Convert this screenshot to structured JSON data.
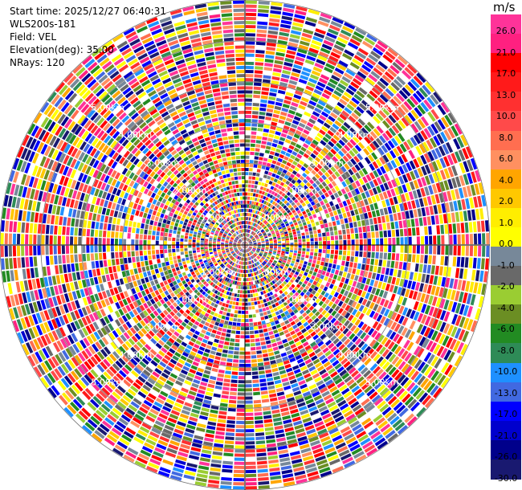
{
  "header": {
    "start_time": "Start time: 2025/12/27 06:40:31",
    "instrument": "WLS200s-181",
    "field": "Field: VEL",
    "elevation": "Elevation(deg): 35.00",
    "nrays": "NRays: 120"
  },
  "rings": {
    "labels": [
      "1.00km",
      "2.00km",
      "3.00km",
      "4.00km",
      "5.00km"
    ]
  },
  "colorbar": {
    "unit": "m/s",
    "ticks": [
      "26.0",
      "21.0",
      "17.0",
      "13.0",
      "10.0",
      "8.0",
      "6.0",
      "4.0",
      "2.0",
      "1.0",
      "0.0",
      "-1.0",
      "-2.0",
      "-4.0",
      "-6.0",
      "-8.0",
      "-10.0",
      "-13.0",
      "-17.0",
      "-21.0",
      "-26.0",
      "-30.0"
    ],
    "colors": [
      "#ff3399",
      "#ff2080",
      "#ff0000",
      "#ff1a1a",
      "#ff3030",
      "#ff4a4a",
      "#ff6e50",
      "#ff9060",
      "#ffa500",
      "#ffc800",
      "#ffee00",
      "#ffff00",
      "#778899",
      "#696969",
      "#9acd32",
      "#6b8e23",
      "#228b22",
      "#2e8b57",
      "#1e90ff",
      "#4169e1",
      "#0000ff",
      "#0000cd",
      "#00008b",
      "#191970"
    ]
  }
}
